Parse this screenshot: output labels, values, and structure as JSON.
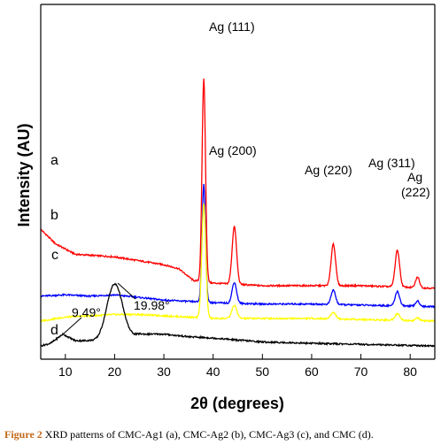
{
  "caption": {
    "figure_number": "Figure 2",
    "text": " XRD patterns of CMC-Ag1 (a), CMC-Ag2 (b), CMC-Ag3 (c), and CMC (d)."
  },
  "chart_data": {
    "type": "line",
    "xlabel": "2θ (degrees)",
    "ylabel": "Intensity (AU)",
    "xlim": [
      5,
      85
    ],
    "x_ticks": [
      10,
      20,
      30,
      40,
      50,
      60,
      70,
      80
    ],
    "y_ticks_shown": false,
    "legend": "none",
    "series": [
      {
        "name": "a",
        "color": "#ff0000",
        "baseline": 0.44,
        "background": [
          [
            5,
            0.45
          ],
          [
            8,
            0.34
          ],
          [
            12,
            0.26
          ],
          [
            16,
            0.25
          ],
          [
            20,
            0.24
          ],
          [
            25,
            0.21
          ],
          [
            30,
            0.18
          ],
          [
            33,
            0.15
          ],
          [
            36,
            0.06
          ],
          [
            40,
            0.04
          ],
          [
            50,
            0.02
          ],
          [
            60,
            0.02
          ],
          [
            70,
            0.02
          ],
          [
            85,
            0.0
          ]
        ],
        "peaks": [
          [
            38.1,
            1.55,
            0.35
          ],
          [
            44.3,
            0.44,
            0.45
          ],
          [
            64.4,
            0.32,
            0.45
          ],
          [
            77.4,
            0.28,
            0.45
          ],
          [
            81.5,
            0.08,
            0.4
          ]
        ]
      },
      {
        "name": "b",
        "color": "#0000ff",
        "baseline": 0.3,
        "background": [
          [
            5,
            0.08
          ],
          [
            10,
            0.09
          ],
          [
            15,
            0.08
          ],
          [
            20,
            0.09
          ],
          [
            25,
            0.07
          ],
          [
            30,
            0.05
          ],
          [
            35,
            0.04
          ],
          [
            40,
            0.03
          ],
          [
            50,
            0.02
          ],
          [
            60,
            0.02
          ],
          [
            85,
            0.0
          ]
        ],
        "peaks": [
          [
            38.1,
            0.9,
            0.35
          ],
          [
            44.3,
            0.16,
            0.45
          ],
          [
            64.4,
            0.11,
            0.45
          ],
          [
            77.4,
            0.11,
            0.45
          ],
          [
            81.5,
            0.04,
            0.4
          ]
        ]
      },
      {
        "name": "c",
        "color": "#ffff00",
        "baseline": 0.19,
        "background": [
          [
            5,
            0.0
          ],
          [
            10,
            0.03
          ],
          [
            15,
            0.04
          ],
          [
            20,
            0.05
          ],
          [
            25,
            0.05
          ],
          [
            30,
            0.04
          ],
          [
            35,
            0.03
          ],
          [
            40,
            0.02
          ],
          [
            60,
            0.02
          ],
          [
            85,
            0.0
          ]
        ],
        "peaks": [
          [
            38.1,
            0.88,
            0.4
          ],
          [
            44.3,
            0.1,
            0.5
          ],
          [
            64.4,
            0.05,
            0.5
          ],
          [
            77.4,
            0.05,
            0.5
          ],
          [
            81.5,
            0.02,
            0.4
          ]
        ]
      },
      {
        "name": "d",
        "color": "#000000",
        "baseline": 0.0,
        "background": [
          [
            5,
            0.0
          ],
          [
            7,
            0.02
          ],
          [
            9.5,
            0.09
          ],
          [
            12,
            0.04
          ],
          [
            15,
            0.04
          ],
          [
            20,
            0.0
          ],
          [
            25,
            0.09
          ],
          [
            30,
            0.09
          ],
          [
            35,
            0.07
          ],
          [
            40,
            0.06
          ],
          [
            50,
            0.03
          ],
          [
            60,
            0.02
          ],
          [
            85,
            0.0
          ]
        ],
        "peaks": [
          [
            20.0,
            0.47,
            1.6
          ]
        ]
      }
    ],
    "annotations": [
      {
        "text": "Ag (111)",
        "x": 38.1
      },
      {
        "text": "Ag (200)",
        "x": 44.3
      },
      {
        "text": "Ag (220)",
        "x": 64.4
      },
      {
        "text": "Ag (311)",
        "x": 77.4
      },
      {
        "text": "Ag",
        "x": 81.5
      },
      {
        "text": "(222)",
        "x": 81.5
      },
      {
        "text": "9.49°",
        "x": 9.49
      },
      {
        "text": "19.98°",
        "x": 19.98
      }
    ]
  }
}
